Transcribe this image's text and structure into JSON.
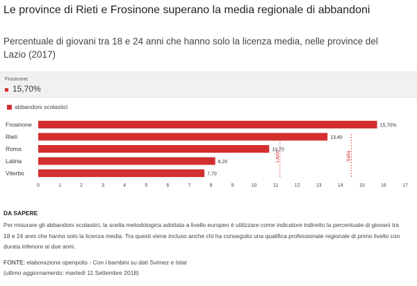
{
  "header": {
    "title": "Le province di Rieti e Frosinone superano la media regionale di abbandoni",
    "subtitle": "Percentuale di giovani tra 18 e 24 anni che hanno solo la licenza media, nelle province del Lazio (2017)"
  },
  "tooltip": {
    "label": "Frosinone",
    "value": "15,70%",
    "color": "#d32f2f"
  },
  "legend": {
    "label": "abbandoni scolastici",
    "color": "#d32f2f"
  },
  "chart_data": {
    "type": "bar",
    "orientation": "horizontal",
    "categories": [
      "Frosinone",
      "Rieti",
      "Roma",
      "Latina",
      "Viterbo"
    ],
    "series": [
      {
        "name": "abbandoni scolastici",
        "values": [
          15.7,
          13.4,
          10.7,
          8.2,
          7.7
        ],
        "labels": [
          "15,70%",
          "13,40",
          "10,70",
          "8,20",
          "7,70"
        ],
        "color": "#d32f2f"
      }
    ],
    "xlim": [
      0,
      17
    ],
    "xticks": [
      "0",
      "1",
      "2",
      "3",
      "4",
      "5",
      "6",
      "7",
      "8",
      "9",
      "10",
      "11",
      "12",
      "13",
      "14",
      "15",
      "16",
      "17"
    ],
    "grid": false,
    "reference_lines": [
      {
        "label": "Lazio",
        "value": 11.2
      },
      {
        "label": "Italia",
        "value": 14.5
      }
    ]
  },
  "notes": {
    "section_title": "DA SAPERE",
    "body": "Per misurare gli abbandoni scolastici, la scelta metodologica adottata a livello europeo è utilizzare come indicatore indiretto la percentuale di giovani tra 18 e 24 anni che hanno solo la licenza media. Tra questi viene incluso anche chi ha conseguito una qualifica professionale regionale di primo livello con durata inferiore ai due anni.",
    "source_label": "FONTE:",
    "source_text": "elaborazione openpolis - Con i bambini su dati Svimez e Istat",
    "updated": "(ultimo aggiornamento: martedì 11 Settembre 2018)"
  }
}
